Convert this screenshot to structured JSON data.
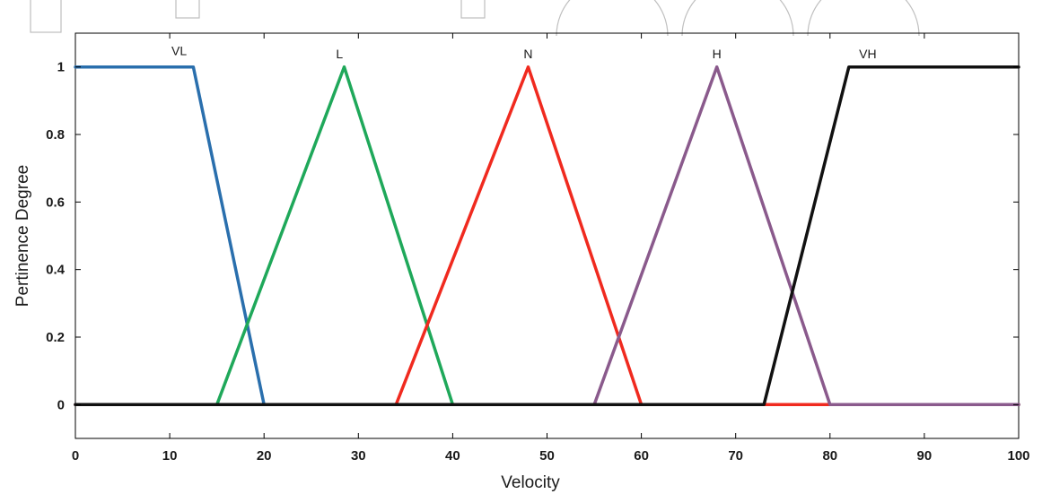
{
  "chart_data": {
    "type": "line",
    "title": "",
    "xlabel": "Velocity",
    "ylabel": "Pertinence Degree",
    "xlim": [
      0,
      100
    ],
    "ylim": [
      -0.1,
      1.1
    ],
    "xticks": [
      0,
      10,
      20,
      30,
      40,
      50,
      60,
      70,
      80,
      90,
      100
    ],
    "xtick_labels": [
      "0",
      "10",
      "20",
      "30",
      "40",
      "50",
      "60",
      "70",
      "80",
      "90",
      "100"
    ],
    "yticks": [
      0,
      0.2,
      0.4,
      0.6,
      0.8,
      1
    ],
    "ytick_labels": [
      "0",
      "0.2",
      "0.4",
      "0.6",
      "0.8",
      "1"
    ],
    "grid": false,
    "series": [
      {
        "name": "VL",
        "color": "#2a6fad",
        "label_at": [
          11,
          1.03
        ],
        "x": [
          0,
          12.5,
          20,
          100
        ],
        "y": [
          1,
          1,
          0,
          0
        ]
      },
      {
        "name": "L",
        "color": "#1fa85a",
        "label_at": [
          28,
          1.02
        ],
        "x": [
          0,
          15,
          28.5,
          40,
          100
        ],
        "y": [
          0,
          0,
          1,
          0,
          0
        ]
      },
      {
        "name": "N",
        "color": "#f02a1f",
        "label_at": [
          48,
          1.02
        ],
        "x": [
          0,
          34,
          48,
          60,
          100
        ],
        "y": [
          0,
          0,
          1,
          0,
          0
        ]
      },
      {
        "name": "H",
        "color": "#8a5a8c",
        "label_at": [
          68,
          1.02
        ],
        "x": [
          0,
          55,
          68,
          80,
          100
        ],
        "y": [
          0,
          0,
          1,
          0,
          0
        ]
      },
      {
        "name": "VH",
        "color": "#111111",
        "label_at": [
          84,
          1.02
        ],
        "x": [
          0,
          73,
          82,
          100
        ],
        "y": [
          0,
          0,
          1,
          1
        ]
      }
    ]
  }
}
